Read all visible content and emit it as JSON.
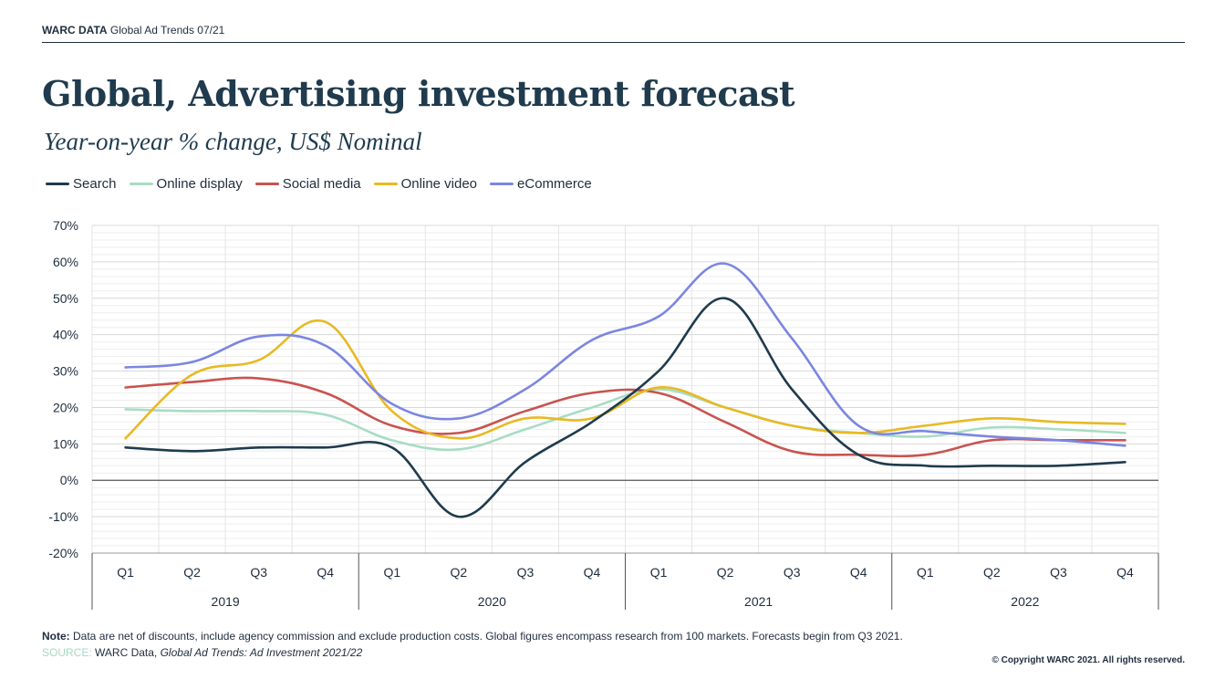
{
  "header": {
    "brand": "WARC DATA",
    "report": "Global Ad Trends 07/21"
  },
  "title": "Global, Advertising investment forecast",
  "subtitle": "Year-on-year % change, US$ Nominal",
  "colors": {
    "search": "#1f3b4d",
    "online_display": "#a8dcc4",
    "social_media": "#c9534f",
    "online_video": "#e8b923",
    "ecommerce": "#7b86e0",
    "grid": "#d9d9d9"
  },
  "chart_data": {
    "type": "line",
    "title": "Global, Advertising investment forecast",
    "subtitle": "Year-on-year % change, US$ Nominal",
    "legend_position": "top-left",
    "ylim": [
      -20,
      70
    ],
    "yticks": [
      70,
      60,
      50,
      40,
      30,
      20,
      10,
      0,
      -10,
      -20
    ],
    "ytick_labels": [
      "70%",
      "60%",
      "50%",
      "40%",
      "30%",
      "20%",
      "10%",
      "0%",
      "-10%",
      "-20%"
    ],
    "grid": true,
    "categories": [
      "Q1",
      "Q2",
      "Q3",
      "Q4",
      "Q1",
      "Q2",
      "Q3",
      "Q4",
      "Q1",
      "Q2",
      "Q3",
      "Q4",
      "Q1",
      "Q2",
      "Q3",
      "Q4"
    ],
    "years": [
      "2019",
      "2020",
      "2021",
      "2022"
    ],
    "series": [
      {
        "name": "Search",
        "color_key": "search",
        "values": [
          9,
          8,
          9,
          9,
          9,
          -10,
          5,
          16,
          30,
          50,
          25,
          7,
          4,
          4,
          4,
          5
        ]
      },
      {
        "name": "Online display",
        "color_key": "online_display",
        "values": [
          19.5,
          19,
          19,
          18,
          11,
          8.5,
          14,
          20,
          25,
          20,
          15,
          13,
          12,
          14.5,
          14,
          13
        ]
      },
      {
        "name": "Social media",
        "color_key": "social_media",
        "values": [
          25.5,
          27,
          28,
          24,
          15,
          13,
          19,
          24,
          24,
          16,
          8,
          7,
          7,
          11,
          11,
          11
        ]
      },
      {
        "name": "Online video",
        "color_key": "online_video",
        "values": [
          11.5,
          29,
          33,
          43.5,
          19,
          11.5,
          17,
          17,
          25.5,
          20,
          15,
          13,
          15,
          17,
          16,
          15.5
        ]
      },
      {
        "name": "eCommerce",
        "color_key": "ecommerce",
        "values": [
          31,
          32.5,
          39.5,
          37,
          21,
          17,
          25,
          38.5,
          45,
          59.5,
          39,
          15,
          13.5,
          12,
          11,
          9.5
        ]
      }
    ]
  },
  "footer": {
    "note_label": "Note:",
    "note_text": " Data are net of discounts, include agency commission and exclude production costs. Global figures encompass research from 100 markets. Forecasts begin from Q3 2021.",
    "source_label": "SOURCE:",
    "source_text": " WARC Data, ",
    "source_italic": "Global Ad Trends: Ad Investment 2021/22",
    "copyright": "© Copyright WARC 2021. All rights reserved."
  }
}
